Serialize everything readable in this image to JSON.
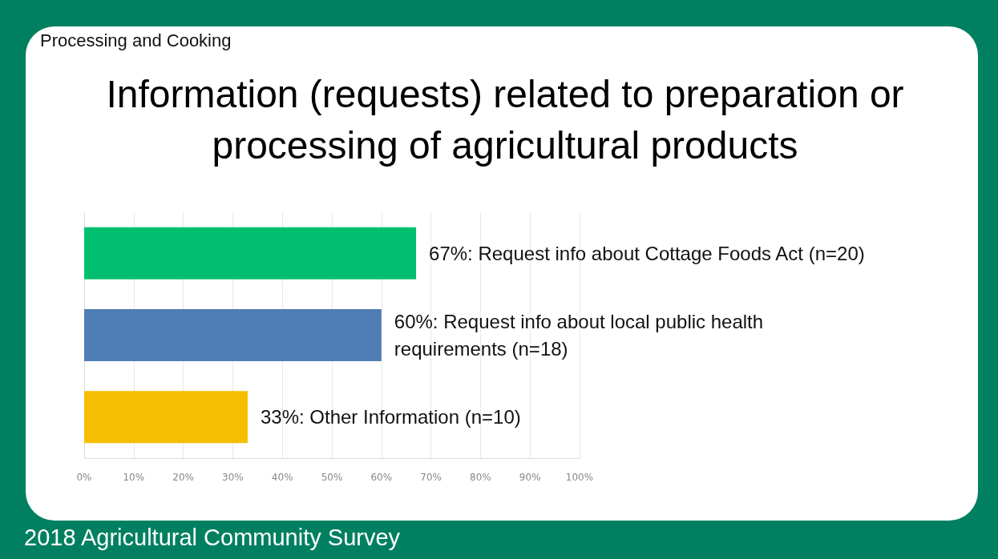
{
  "chart_data": {
    "type": "bar",
    "orientation": "horizontal",
    "subtitle": "Processing and Cooking",
    "title": "Information (requests) related to preparation or processing of agricultural products",
    "categories": [
      null,
      null,
      null
    ],
    "values": [
      67,
      60,
      33
    ],
    "value_labels": [
      "67%: Request info about Cottage Foods Act (n=20)",
      "60%: Request info about local public health requirements (n=18)",
      "33%: Other Information (n=10)"
    ],
    "colors": [
      "#00bf6f",
      "#4f7db5",
      "#f5be00"
    ],
    "xlim": [
      0,
      100
    ],
    "xticks": [
      {
        "value": 0,
        "label": "0%"
      },
      {
        "value": 10,
        "label": "10%"
      },
      {
        "value": 20,
        "label": "20%"
      },
      {
        "value": 30,
        "label": "30%"
      },
      {
        "value": 40,
        "label": "40%"
      },
      {
        "value": 50,
        "label": "50%"
      },
      {
        "value": 60,
        "label": "60%"
      },
      {
        "value": 70,
        "label": "70%"
      },
      {
        "value": 80,
        "label": "80%"
      },
      {
        "value": 90,
        "label": "90%"
      },
      {
        "value": 100,
        "label": "100%"
      }
    ],
    "grid": "x",
    "tick_labels": "x",
    "annotations": [
      "2018 Agricultural Community Survey"
    ]
  }
}
